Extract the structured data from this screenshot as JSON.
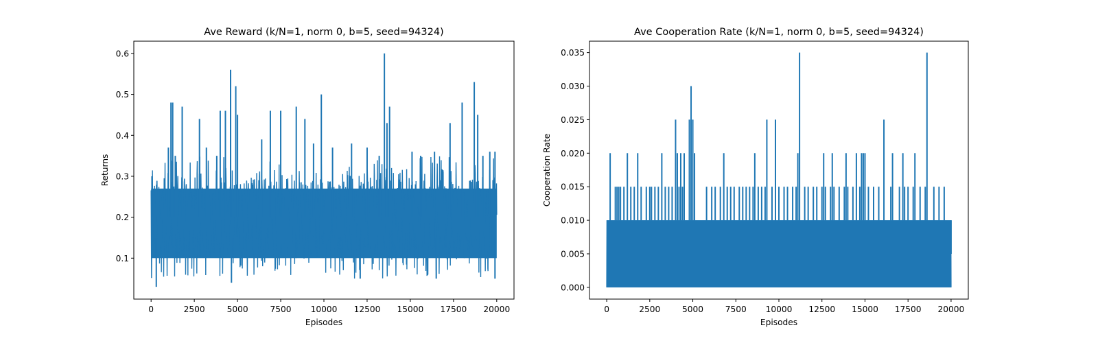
{
  "chart_data": [
    {
      "type": "line",
      "title": "Ave Reward (k/N=1, norm 0, b=5, seed=94324)",
      "xlabel": "Episodes",
      "ylabel": "Returns",
      "xlim": [
        -1000,
        21000
      ],
      "ylim": [
        0.0,
        0.63
      ],
      "xticks": [
        0,
        2500,
        5000,
        7500,
        10000,
        12500,
        15000,
        17500,
        20000
      ],
      "yticks": [
        0.1,
        0.2,
        0.3,
        0.4,
        0.5,
        0.6
      ],
      "ytick_labels": [
        "0.1",
        "0.2",
        "0.3",
        "0.4",
        "0.5",
        "0.6"
      ],
      "grid": false,
      "series": [
        {
          "color": "#1f77b4",
          "n_episodes": 20000,
          "band_low": 0.09,
          "band_high": 0.28,
          "min": 0.03,
          "max": 0.6,
          "spikes": [
            {
              "x": 50,
              "y": 0.3
            },
            {
              "x": 300,
              "y": 0.03
            },
            {
              "x": 1000,
              "y": 0.37
            },
            {
              "x": 1150,
              "y": 0.48
            },
            {
              "x": 1250,
              "y": 0.48
            },
            {
              "x": 1400,
              "y": 0.35
            },
            {
              "x": 1800,
              "y": 0.47
            },
            {
              "x": 2800,
              "y": 0.44
            },
            {
              "x": 3200,
              "y": 0.37
            },
            {
              "x": 3800,
              "y": 0.35
            },
            {
              "x": 4000,
              "y": 0.46
            },
            {
              "x": 4300,
              "y": 0.46
            },
            {
              "x": 4600,
              "y": 0.56
            },
            {
              "x": 4650,
              "y": 0.04
            },
            {
              "x": 4900,
              "y": 0.52
            },
            {
              "x": 5000,
              "y": 0.45
            },
            {
              "x": 6400,
              "y": 0.39
            },
            {
              "x": 6900,
              "y": 0.46
            },
            {
              "x": 7500,
              "y": 0.46
            },
            {
              "x": 8400,
              "y": 0.47
            },
            {
              "x": 8900,
              "y": 0.44
            },
            {
              "x": 9400,
              "y": 0.38
            },
            {
              "x": 9850,
              "y": 0.5
            },
            {
              "x": 10500,
              "y": 0.37
            },
            {
              "x": 11600,
              "y": 0.38
            },
            {
              "x": 12100,
              "y": 0.05
            },
            {
              "x": 12500,
              "y": 0.37
            },
            {
              "x": 13200,
              "y": 0.35
            },
            {
              "x": 13500,
              "y": 0.6
            },
            {
              "x": 13650,
              "y": 0.43
            },
            {
              "x": 13800,
              "y": 0.47
            },
            {
              "x": 15100,
              "y": 0.36
            },
            {
              "x": 15600,
              "y": 0.35
            },
            {
              "x": 16400,
              "y": 0.36
            },
            {
              "x": 16500,
              "y": 0.05
            },
            {
              "x": 17300,
              "y": 0.43
            },
            {
              "x": 18000,
              "y": 0.48
            },
            {
              "x": 18700,
              "y": 0.53
            },
            {
              "x": 18900,
              "y": 0.45
            },
            {
              "x": 19200,
              "y": 0.35
            },
            {
              "x": 19600,
              "y": 0.36
            },
            {
              "x": 19900,
              "y": 0.36
            },
            {
              "x": 19900,
              "y": 0.05
            }
          ]
        }
      ]
    },
    {
      "type": "line",
      "title": "Ave Cooperation Rate (k/N=1, norm 0, b=5, seed=94324)",
      "xlabel": "Episodes",
      "ylabel": "Cooperation Rate",
      "xlim": [
        -1000,
        21000
      ],
      "ylim": [
        -0.00175,
        0.0367
      ],
      "xticks": [
        0,
        2500,
        5000,
        7500,
        10000,
        12500,
        15000,
        17500,
        20000
      ],
      "yticks": [
        0.0,
        0.005,
        0.01,
        0.015,
        0.02,
        0.025,
        0.03,
        0.035
      ],
      "ytick_labels": [
        "0.000",
        "0.005",
        "0.010",
        "0.015",
        "0.020",
        "0.025",
        "0.030",
        "0.035"
      ],
      "grid": false,
      "series": [
        {
          "color": "#1f77b4",
          "n_episodes": 20000,
          "band_low": 0.0,
          "band_high": 0.01,
          "min": 0.0,
          "max": 0.035,
          "spikes_015": [
            500,
            600,
            700,
            800,
            1000,
            1400,
            1600,
            2000,
            2300,
            2500,
            2600,
            2800,
            3000,
            3400,
            3600,
            3800,
            4200,
            4400,
            5800,
            6100,
            6300,
            6600,
            7000,
            7200,
            7400,
            7700,
            7900,
            8100,
            8300,
            8500,
            8800,
            9000,
            9200,
            9600,
            10000,
            10300,
            10500,
            10800,
            11000,
            11500,
            11700,
            12000,
            12200,
            12500,
            12700,
            13000,
            13200,
            13500,
            13800,
            14000,
            14300,
            14700,
            15000,
            15200,
            15500,
            15800,
            16500,
            17000,
            17300,
            17500,
            17800,
            18200,
            18500,
            19000,
            19300,
            19600
          ],
          "spikes_020": [
            200,
            1200,
            1800,
            3200,
            4100,
            4300,
            4500,
            5100,
            6800,
            8600,
            11100,
            12600,
            13100,
            13900,
            14500,
            14800,
            14900,
            15000,
            16600,
            17200,
            17900
          ],
          "spikes_025": [
            4000,
            4800,
            5000,
            9300,
            9800,
            16100
          ],
          "spikes_030": [
            4900
          ],
          "spikes_035": [
            11200,
            18600
          ]
        }
      ]
    }
  ]
}
